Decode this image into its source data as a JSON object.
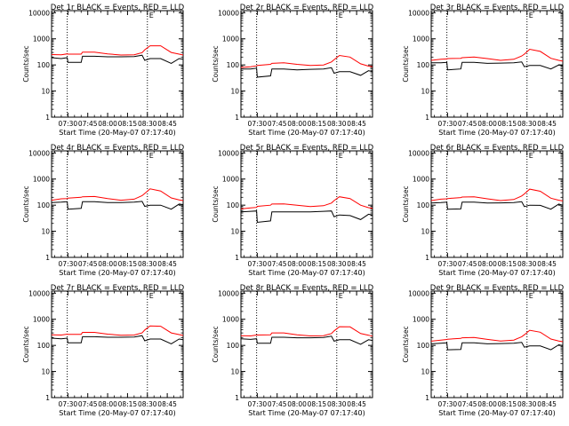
{
  "colors": {
    "events": "#000000",
    "lld": "#ff0000",
    "axis": "#000000",
    "background": "#ffffff"
  },
  "common": {
    "ylabel": "Counts/sec",
    "xlabel": "Start Time (20-May-07 07:17:40)",
    "x_tick_labels": [
      "07:30",
      "07:45",
      "08:00",
      "08:15",
      "08:30",
      "08:45"
    ],
    "x_tick_minutes": [
      30,
      45,
      60,
      75,
      90,
      105
    ],
    "xlim_minutes": [
      17.67,
      117
    ],
    "y_tick_labels": [
      "1",
      "10",
      "100",
      "1000",
      "10000"
    ],
    "y_tick_values": [
      1,
      10,
      100,
      1000,
      10000
    ],
    "ylim": [
      1,
      12000
    ],
    "yscale": "log",
    "vlines_minutes": [
      29.5,
      90
    ],
    "marker_label": "E",
    "marker_minute": 93
  },
  "chart_data": [
    {
      "type": "line",
      "title": "Det 1r BLACK = Events, RED = LLD",
      "x_unit": "minutes after 07:00",
      "series": [
        {
          "name": "Events",
          "color": "#000000",
          "x": [
            17.67,
            25,
            29.5,
            30,
            40,
            41,
            50,
            60,
            70,
            80,
            86,
            88,
            92,
            100,
            108,
            114,
            117
          ],
          "values": [
            190,
            175,
            190,
            125,
            125,
            215,
            215,
            205,
            205,
            210,
            235,
            150,
            175,
            175,
            115,
            175,
            165
          ]
        },
        {
          "name": "LLD",
          "color": "#ff0000",
          "x": [
            17.67,
            25,
            29.5,
            30,
            40,
            41,
            50,
            60,
            70,
            80,
            86,
            88,
            92,
            100,
            108,
            114,
            117
          ],
          "values": [
            250,
            245,
            265,
            260,
            260,
            310,
            310,
            265,
            240,
            245,
            295,
            380,
            540,
            540,
            300,
            260,
            240
          ]
        }
      ]
    },
    {
      "type": "line",
      "title": "Det 2r BLACK = Events, RED = LLD",
      "x_unit": "minutes after 07:00",
      "series": [
        {
          "name": "Events",
          "color": "#000000",
          "x": [
            17.67,
            25,
            29.5,
            30,
            40,
            41,
            50,
            60,
            70,
            80,
            86,
            88,
            92,
            100,
            108,
            114,
            117
          ],
          "values": [
            70,
            70,
            75,
            34,
            38,
            70,
            70,
            65,
            68,
            70,
            78,
            48,
            55,
            55,
            40,
            60,
            55
          ]
        },
        {
          "name": "LLD",
          "color": "#ff0000",
          "x": [
            17.67,
            25,
            29.5,
            30,
            40,
            41,
            50,
            60,
            70,
            80,
            86,
            88,
            92,
            100,
            108,
            114,
            117
          ],
          "values": [
            80,
            85,
            92,
            95,
            105,
            115,
            120,
            105,
            95,
            100,
            130,
            160,
            230,
            200,
            110,
            90,
            85
          ]
        }
      ]
    },
    {
      "type": "line",
      "title": "Det 3r BLACK = Events, RED = LLD",
      "x_unit": "minutes after 07:00",
      "series": [
        {
          "name": "Events",
          "color": "#000000",
          "x": [
            17.67,
            25,
            29.5,
            30,
            40,
            41,
            50,
            60,
            70,
            80,
            86,
            88,
            92,
            100,
            108,
            114,
            117
          ],
          "values": [
            120,
            120,
            125,
            65,
            70,
            125,
            125,
            115,
            118,
            120,
            130,
            85,
            95,
            95,
            70,
            100,
            95
          ]
        },
        {
          "name": "LLD",
          "color": "#ff0000",
          "x": [
            17.67,
            25,
            29.5,
            30,
            40,
            41,
            50,
            60,
            70,
            80,
            86,
            88,
            92,
            100,
            108,
            114,
            117
          ],
          "values": [
            150,
            165,
            170,
            175,
            180,
            190,
            200,
            175,
            150,
            165,
            220,
            260,
            400,
            330,
            180,
            150,
            140
          ]
        }
      ]
    },
    {
      "type": "line",
      "title": "Det 4r BLACK = Events, RED = LLD",
      "x_unit": "minutes after 07:00",
      "series": [
        {
          "name": "Events",
          "color": "#000000",
          "x": [
            17.67,
            25,
            29.5,
            30,
            40,
            41,
            50,
            60,
            70,
            80,
            86,
            88,
            92,
            100,
            108,
            114,
            117
          ],
          "values": [
            125,
            130,
            135,
            70,
            75,
            135,
            135,
            125,
            125,
            130,
            140,
            90,
            100,
            100,
            70,
            110,
            105
          ]
        },
        {
          "name": "LLD",
          "color": "#ff0000",
          "x": [
            17.67,
            25,
            29.5,
            30,
            40,
            41,
            50,
            60,
            70,
            80,
            86,
            88,
            92,
            100,
            108,
            114,
            117
          ],
          "values": [
            155,
            175,
            180,
            185,
            200,
            210,
            215,
            180,
            155,
            170,
            230,
            280,
            420,
            350,
            190,
            160,
            150
          ]
        }
      ]
    },
    {
      "type": "line",
      "title": "Det 5r BLACK = Events, RED = LLD",
      "x_unit": "minutes after 07:00",
      "series": [
        {
          "name": "Events",
          "color": "#000000",
          "x": [
            17.67,
            25,
            29.5,
            30,
            40,
            41,
            50,
            60,
            70,
            80,
            86,
            88,
            92,
            100,
            108,
            114,
            117
          ],
          "values": [
            55,
            58,
            60,
            22,
            25,
            55,
            55,
            55,
            55,
            58,
            60,
            36,
            42,
            40,
            28,
            45,
            42
          ]
        },
        {
          "name": "LLD",
          "color": "#ff0000",
          "x": [
            17.67,
            25,
            29.5,
            30,
            40,
            41,
            50,
            60,
            70,
            80,
            86,
            88,
            92,
            100,
            108,
            114,
            117
          ],
          "values": [
            72,
            78,
            82,
            90,
            100,
            110,
            112,
            100,
            88,
            95,
            120,
            150,
            210,
            180,
            100,
            80,
            75
          ]
        }
      ]
    },
    {
      "type": "line",
      "title": "Det 6r BLACK = Events, RED = LLD",
      "x_unit": "minutes after 07:00",
      "series": [
        {
          "name": "Events",
          "color": "#000000",
          "x": [
            17.67,
            25,
            29.5,
            30,
            40,
            41,
            50,
            60,
            70,
            80,
            86,
            88,
            92,
            100,
            108,
            114,
            117
          ],
          "values": [
            120,
            125,
            130,
            70,
            72,
            130,
            130,
            120,
            122,
            125,
            135,
            88,
            100,
            98,
            70,
            110,
            100
          ]
        },
        {
          "name": "LLD",
          "color": "#ff0000",
          "x": [
            17.67,
            25,
            29.5,
            30,
            40,
            41,
            50,
            60,
            70,
            80,
            86,
            88,
            92,
            100,
            108,
            114,
            117
          ],
          "values": [
            150,
            170,
            175,
            180,
            195,
            205,
            210,
            175,
            150,
            165,
            225,
            270,
            410,
            340,
            185,
            155,
            145
          ]
        }
      ]
    },
    {
      "type": "line",
      "title": "Det 7r BLACK = Events, RED = LLD",
      "x_unit": "minutes after 07:00",
      "series": [
        {
          "name": "Events",
          "color": "#000000",
          "x": [
            17.67,
            25,
            29.5,
            30,
            40,
            41,
            50,
            60,
            70,
            80,
            86,
            88,
            92,
            100,
            108,
            114,
            117
          ],
          "values": [
            190,
            180,
            190,
            125,
            125,
            215,
            215,
            205,
            205,
            210,
            235,
            150,
            175,
            175,
            115,
            175,
            165
          ]
        },
        {
          "name": "LLD",
          "color": "#ff0000",
          "x": [
            17.67,
            25,
            29.5,
            30,
            40,
            41,
            50,
            60,
            70,
            80,
            86,
            88,
            92,
            100,
            108,
            114,
            117
          ],
          "values": [
            255,
            250,
            270,
            265,
            265,
            315,
            315,
            270,
            245,
            250,
            300,
            390,
            560,
            540,
            300,
            260,
            240
          ]
        }
      ]
    },
    {
      "type": "line",
      "title": "Det 8r BLACK = Events, RED = LLD",
      "x_unit": "minutes after 07:00",
      "series": [
        {
          "name": "Events",
          "color": "#000000",
          "x": [
            17.67,
            25,
            29.5,
            30,
            40,
            41,
            50,
            60,
            70,
            80,
            86,
            88,
            92,
            100,
            108,
            114,
            117
          ],
          "values": [
            180,
            170,
            180,
            120,
            120,
            205,
            205,
            195,
            195,
            200,
            225,
            145,
            165,
            165,
            110,
            165,
            155
          ]
        },
        {
          "name": "LLD",
          "color": "#ff0000",
          "x": [
            17.67,
            25,
            29.5,
            30,
            40,
            41,
            50,
            60,
            70,
            80,
            86,
            88,
            92,
            100,
            108,
            114,
            117
          ],
          "values": [
            235,
            230,
            250,
            250,
            255,
            300,
            300,
            255,
            230,
            235,
            285,
            360,
            520,
            510,
            285,
            245,
            225
          ]
        }
      ]
    },
    {
      "type": "line",
      "title": "Det 9r BLACK = Events, RED = LLD",
      "x_unit": "minutes after 07:00",
      "series": [
        {
          "name": "Events",
          "color": "#000000",
          "x": [
            17.67,
            25,
            29.5,
            30,
            40,
            41,
            50,
            60,
            70,
            80,
            86,
            88,
            92,
            100,
            108,
            114,
            117
          ],
          "values": [
            115,
            120,
            125,
            68,
            70,
            125,
            125,
            115,
            118,
            120,
            130,
            85,
            95,
            95,
            68,
            105,
            98
          ]
        },
        {
          "name": "LLD",
          "color": "#ff0000",
          "x": [
            17.67,
            25,
            29.5,
            30,
            40,
            41,
            50,
            60,
            70,
            80,
            86,
            88,
            92,
            100,
            108,
            114,
            117
          ],
          "values": [
            145,
            160,
            168,
            172,
            185,
            195,
            200,
            170,
            148,
            160,
            215,
            255,
            380,
            320,
            175,
            148,
            138
          ]
        }
      ]
    }
  ]
}
